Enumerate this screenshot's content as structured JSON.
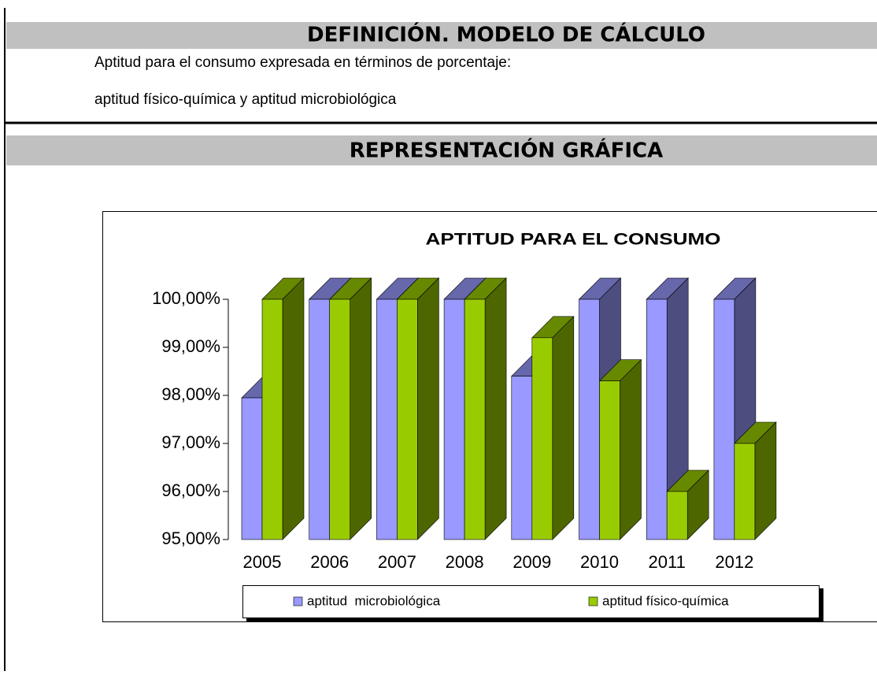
{
  "definition": {
    "title": "DEFINICIÓN. MODELO DE CÁLCULO",
    "lines": [
      "Aptitud para el consumo expresada en términos de porcentaje:",
      "aptitud físico-química y aptitud microbiológica"
    ]
  },
  "representation": {
    "title": "REPRESENTACIÓN GRÁFICA"
  },
  "chart_data": {
    "type": "bar3d",
    "title": "APTITUD PARA EL CONSUMO",
    "categories": [
      "2005",
      "2006",
      "2007",
      "2008",
      "2009",
      "2010",
      "2011",
      "2012"
    ],
    "series": [
      {
        "name": "aptitud  microbiológica",
        "color": "#9999ff",
        "values": [
          97.95,
          100,
          100,
          100,
          98.4,
          100,
          100,
          100
        ]
      },
      {
        "name": "aptitud físico-química",
        "color": "#99cc00",
        "values": [
          100,
          100,
          100,
          100,
          99.2,
          98.3,
          96.0,
          97.0
        ]
      }
    ],
    "ylim": [
      95,
      100
    ],
    "yticks": [
      {
        "value": 95,
        "label": "95,00%"
      },
      {
        "value": 96,
        "label": "96,00%"
      },
      {
        "value": 97,
        "label": "97,00%"
      },
      {
        "value": 98,
        "label": "98,00%"
      },
      {
        "value": 99,
        "label": "99,00%"
      },
      {
        "value": 100,
        "label": "100,00%"
      }
    ],
    "legend": "bottom"
  }
}
